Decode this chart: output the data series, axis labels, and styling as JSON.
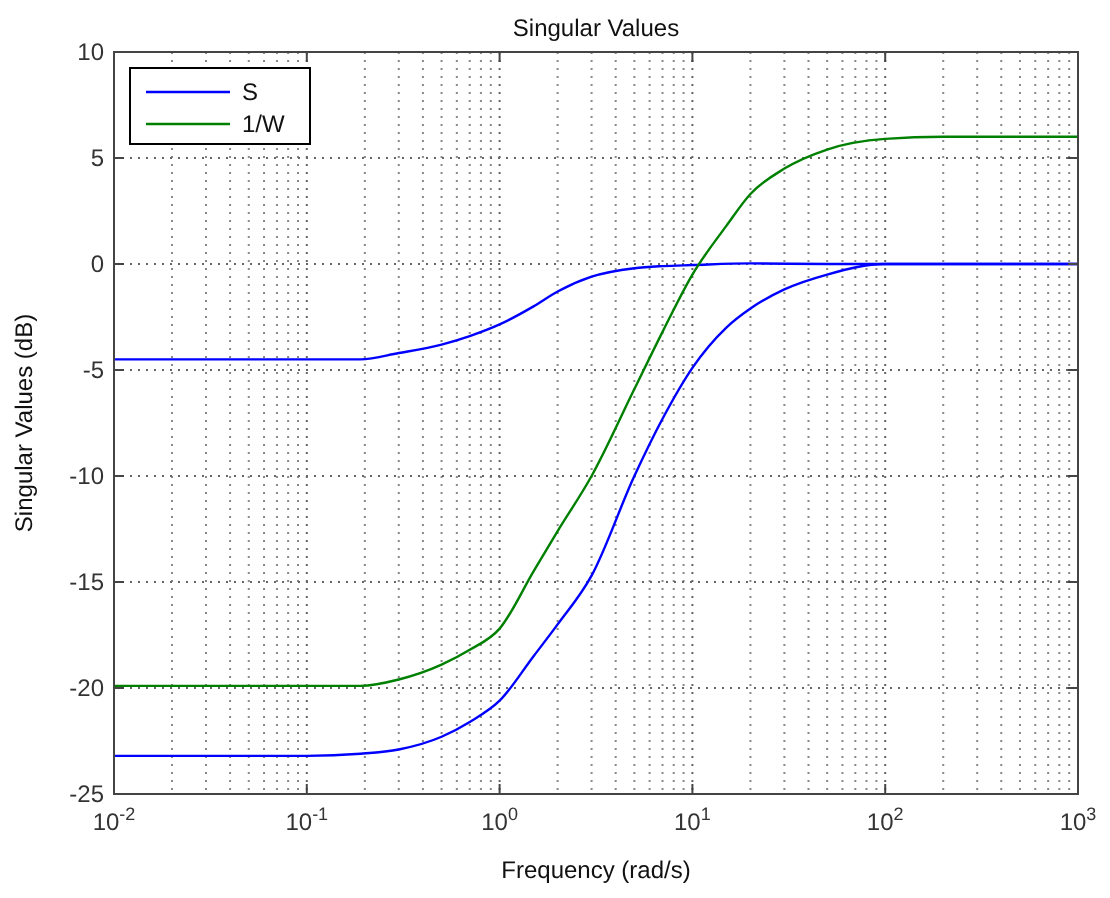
{
  "chart_data": {
    "type": "line",
    "title": "Singular Values",
    "xlabel": "Frequency (rad/s)",
    "ylabel": "Singular Values (dB)",
    "log": "x",
    "xlim": [
      0.01,
      1000
    ],
    "xticks": [
      {
        "value": 0.01,
        "label": "10$^{-2}$"
      },
      {
        "value": 0.1,
        "label": "10$^{-1}$"
      },
      {
        "value": 1,
        "label": "10$^{0}$"
      },
      {
        "value": 10,
        "label": "10$^{1}$"
      },
      {
        "value": 100,
        "label": "10$^{2}$"
      },
      {
        "value": 1000,
        "label": "10$^{3}$"
      }
    ],
    "ylim": [
      -25,
      10
    ],
    "yticks": [
      -25,
      -20,
      -15,
      -10,
      -5,
      0,
      5,
      10
    ],
    "grid": true,
    "legend": "top left",
    "line_style": "solid",
    "series": [
      {
        "name": "S",
        "color": "#0000ff",
        "x": [
          0.01,
          0.05,
          0.1,
          0.19,
          0.3,
          0.5,
          0.7,
          1,
          1.5,
          2,
          3,
          5,
          7,
          10,
          20,
          50,
          100,
          1000
        ],
        "values": [
          -4.5,
          -4.5,
          -4.5,
          -4.5,
          -4.2,
          -3.8,
          -3.4,
          -2.85,
          -2,
          -1.3,
          -0.6,
          -0.2,
          -0.1,
          -0.05,
          0.03,
          0,
          0,
          0
        ]
      },
      {
        "name": "1/W",
        "color": "#008000",
        "x": [
          0.01,
          0.05,
          0.1,
          0.19,
          0.3,
          0.5,
          0.7,
          1,
          1.5,
          2,
          3,
          5,
          7,
          10,
          15,
          20,
          30,
          50,
          100,
          200,
          1000
        ],
        "values": [
          -19.9,
          -19.9,
          -19.9,
          -19.9,
          -19.6,
          -18.9,
          -18.2,
          -17.2,
          -14.5,
          -12.6,
          -10,
          -5.9,
          -3.2,
          -0.5,
          1.8,
          3.3,
          4.5,
          5.4,
          5.9,
          6,
          6
        ]
      },
      {
        "color": "#0000ff",
        "x": [
          0.01,
          0.05,
          0.1,
          0.19,
          0.3,
          0.5,
          0.7,
          1,
          1.5,
          2,
          3,
          5,
          7,
          10,
          15,
          20,
          30,
          50,
          100,
          1000
        ],
        "values": [
          -23.2,
          -23.2,
          -23.2,
          -23.1,
          -22.9,
          -22.3,
          -21.6,
          -20.6,
          -18.5,
          -17,
          -14.7,
          -10,
          -7.3,
          -4.9,
          -3,
          -2.1,
          -1.2,
          -0.5,
          0,
          0
        ]
      }
    ]
  }
}
